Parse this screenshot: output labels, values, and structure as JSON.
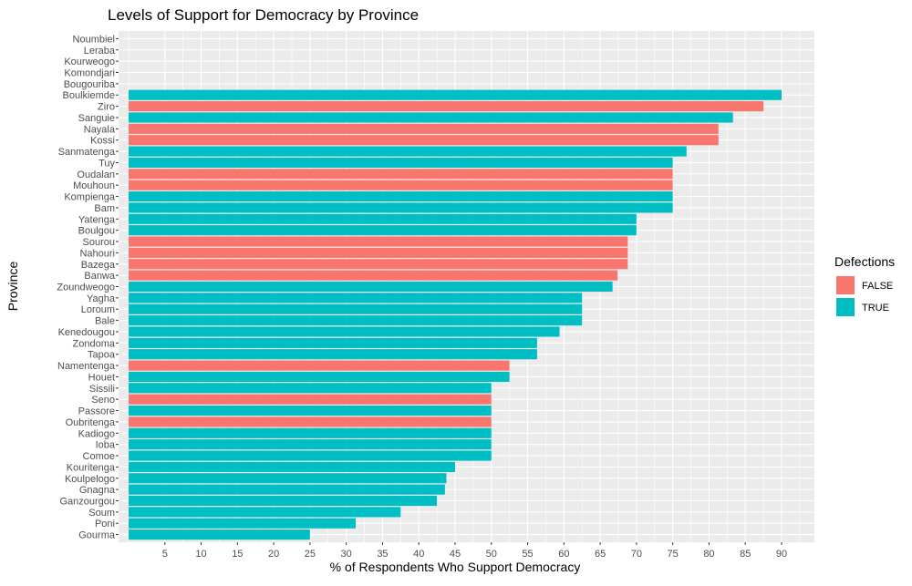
{
  "chart_data": {
    "type": "bar",
    "orientation": "horizontal",
    "title": "Levels of Support for Democracy by Province",
    "xlabel": "% of Respondents Who Support Democracy",
    "ylabel": "Province",
    "xlim": [
      0,
      93
    ],
    "x_ticks": [
      5,
      10,
      15,
      20,
      25,
      30,
      35,
      40,
      45,
      50,
      55,
      60,
      65,
      70,
      75,
      80,
      85,
      90
    ],
    "grid": true,
    "legend": {
      "title": "Defections",
      "placement": "right",
      "entries": [
        {
          "label": "FALSE",
          "color": "#F8766D"
        },
        {
          "label": "TRUE",
          "color": "#00BFC4"
        }
      ]
    },
    "categories": [
      "Noumbiel",
      "Leraba",
      "Kourweogo",
      "Komondjari",
      "Bougouriba",
      "Boulkiemde",
      "Ziro",
      "Sanguie",
      "Nayala",
      "Kossi",
      "Sanmatenga",
      "Tuy",
      "Oudalan",
      "Mouhoun",
      "Kompienga",
      "Bam",
      "Yatenga",
      "Boulgou",
      "Sourou",
      "Nahouri",
      "Bazega",
      "Banwa",
      "Zoundweogo",
      "Yagha",
      "Loroum",
      "Bale",
      "Kenedougou",
      "Zondoma",
      "Tapoa",
      "Namentenga",
      "Houet",
      "Sissili",
      "Seno",
      "Passore",
      "Oubritenga",
      "Kadiogo",
      "Ioba",
      "Comoe",
      "Kouritenga",
      "Koulpelogo",
      "Gnagna",
      "Ganzourgou",
      "Soum",
      "Poni",
      "Gourma"
    ],
    "values": [
      null,
      null,
      null,
      null,
      null,
      90,
      87.5,
      83.3,
      81.3,
      81.3,
      76.9,
      75,
      75,
      75,
      75,
      75,
      70,
      70,
      68.8,
      68.8,
      68.8,
      67.4,
      66.7,
      62.5,
      62.5,
      62.5,
      59.4,
      56.3,
      56.3,
      52.5,
      52.5,
      50,
      50,
      50,
      50,
      50,
      50,
      50,
      45,
      43.8,
      43.6,
      42.5,
      37.5,
      31.3,
      25
    ],
    "defections": [
      null,
      null,
      null,
      null,
      null,
      "TRUE",
      "FALSE",
      "TRUE",
      "FALSE",
      "FALSE",
      "TRUE",
      "TRUE",
      "FALSE",
      "FALSE",
      "TRUE",
      "TRUE",
      "TRUE",
      "TRUE",
      "FALSE",
      "FALSE",
      "FALSE",
      "FALSE",
      "TRUE",
      "TRUE",
      "TRUE",
      "TRUE",
      "TRUE",
      "TRUE",
      "TRUE",
      "FALSE",
      "TRUE",
      "TRUE",
      "FALSE",
      "TRUE",
      "FALSE",
      "TRUE",
      "TRUE",
      "TRUE",
      "TRUE",
      "TRUE",
      "TRUE",
      "TRUE",
      "TRUE",
      "TRUE",
      "TRUE"
    ],
    "colors": {
      "panel": "#EBEBEB",
      "grid": "#FFFFFF"
    }
  }
}
